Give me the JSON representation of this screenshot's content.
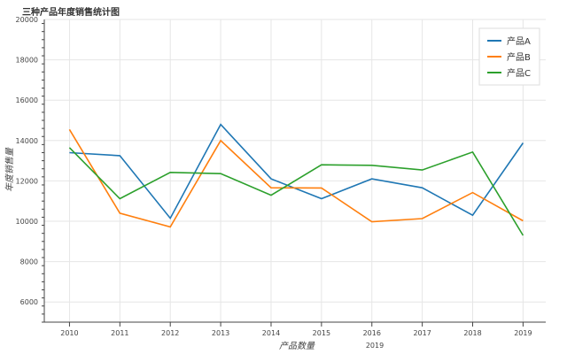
{
  "chart_data": {
    "type": "line",
    "title": "三种产品年度销售统计图",
    "xlabel": "产品数量",
    "ylabel": "年度销售量",
    "x": [
      2010,
      2011,
      2012,
      2013,
      2014,
      2015,
      2016,
      2017,
      2018,
      2019
    ],
    "x_extra_label": "2019",
    "xlim": [
      2009.5,
      2019.45
    ],
    "ylim": [
      5000,
      20000
    ],
    "yticks": [
      6000,
      8000,
      10000,
      12000,
      14000,
      16000,
      18000,
      20000
    ],
    "grid": true,
    "legend_position": "top-right",
    "series": [
      {
        "name": "产品A",
        "color": "#1f77b4",
        "values": [
          13400,
          13250,
          10150,
          14800,
          12100,
          11120,
          12100,
          11660,
          10300,
          13880
        ]
      },
      {
        "name": "产品B",
        "color": "#ff7f0e",
        "values": [
          14550,
          10400,
          9720,
          14000,
          11660,
          11650,
          9980,
          10130,
          11420,
          10020
        ]
      },
      {
        "name": "产品C",
        "color": "#2ca02c",
        "values": [
          13650,
          11120,
          12420,
          12360,
          11290,
          12800,
          12770,
          12540,
          13430,
          9300
        ]
      }
    ]
  }
}
